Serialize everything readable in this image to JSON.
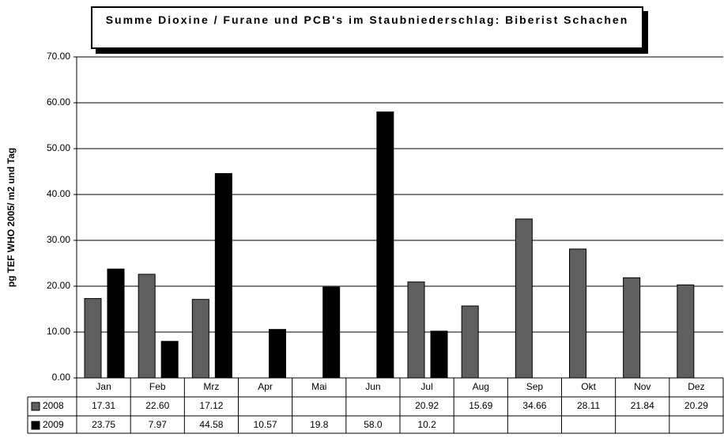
{
  "chart_data": {
    "type": "bar",
    "title": "Summe Dioxine / Furane und PCB's im Staubniederschlag: Biberist Schachen",
    "ylabel": "pg TEF WHO 2005/ m2 und Tag",
    "categories": [
      "Jan",
      "Feb",
      "Mrz",
      "Apr",
      "Mai",
      "Jun",
      "Jul",
      "Aug",
      "Sep",
      "Okt",
      "Nov",
      "Dez"
    ],
    "series": [
      {
        "name": "2008",
        "color": "#5f5f5f",
        "values": [
          17.31,
          22.6,
          17.12,
          null,
          null,
          null,
          20.92,
          15.69,
          34.66,
          28.11,
          21.84,
          20.29
        ],
        "value_labels": [
          "17.31",
          "22.60",
          "17.12",
          null,
          null,
          null,
          "20.92",
          "15.69",
          "34.66",
          "28.11",
          "21.84",
          "20.29"
        ]
      },
      {
        "name": "2009",
        "color": "#000000",
        "values": [
          23.75,
          7.97,
          44.58,
          10.57,
          19.8,
          58,
          10.2,
          null,
          null,
          null,
          null,
          null
        ],
        "value_labels": [
          "23.75",
          "7.97",
          "44.58",
          "10.57",
          "19.8",
          "58.0",
          "10.2",
          null,
          null,
          null,
          null,
          null
        ]
      }
    ],
    "ylim": [
      0,
      70
    ],
    "yticks": [
      {
        "value": 0,
        "label": "0.00"
      },
      {
        "value": 10,
        "label": "10.00"
      },
      {
        "value": 20,
        "label": "20.00"
      },
      {
        "value": 30,
        "label": "30.00"
      },
      {
        "value": 40,
        "label": "40.00"
      },
      {
        "value": 50,
        "label": "50.00"
      },
      {
        "value": 60,
        "label": "60.00"
      },
      {
        "value": 70,
        "label": "70.00"
      }
    ],
    "grid": true
  }
}
